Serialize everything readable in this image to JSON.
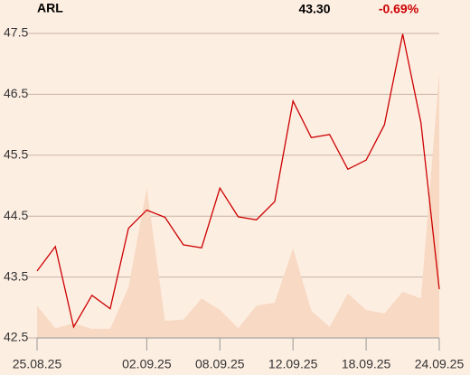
{
  "chart_data": {
    "type": "line",
    "header": {
      "symbol": "ARL",
      "last": "43.30",
      "change": "-0.69%"
    },
    "categories": [
      "25.08.25",
      null,
      null,
      null,
      null,
      null,
      "02.09.25",
      null,
      null,
      null,
      "08.09.25",
      null,
      null,
      null,
      "12.09.25",
      null,
      null,
      null,
      "18.09.25",
      null,
      null,
      null,
      "24.09.25"
    ],
    "series": [
      {
        "kind": "area",
        "color": "#f8d9c3",
        "values": [
          43.03,
          42.66,
          42.74,
          42.65,
          42.65,
          43.33,
          44.96,
          42.78,
          42.8,
          43.15,
          42.96,
          42.66,
          43.03,
          43.08,
          43.97,
          42.95,
          42.68,
          43.23,
          42.96,
          42.9,
          43.26,
          43.15,
          46.86
        ]
      },
      {
        "kind": "line",
        "color": "#cc0000",
        "values": [
          43.6,
          44.0,
          42.68,
          43.2,
          42.98,
          44.3,
          44.6,
          44.48,
          44.03,
          43.98,
          44.96,
          44.49,
          44.44,
          44.74,
          46.39,
          45.79,
          45.84,
          45.27,
          45.42,
          46.0,
          47.49,
          46.03,
          43.3
        ]
      }
    ],
    "ylim": [
      42.5,
      47.5
    ],
    "yticks": [
      42.5,
      43.5,
      44.5,
      45.5,
      46.5,
      47.5
    ],
    "grid": true
  }
}
